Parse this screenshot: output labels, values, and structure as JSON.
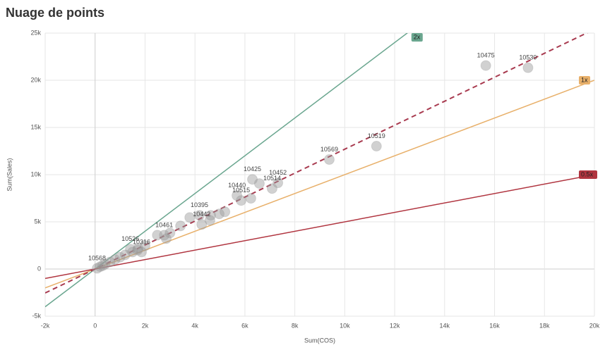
{
  "chart_data": {
    "type": "scatter",
    "title": "Nuage de points",
    "x_label": "Sum(COS)",
    "y_label": "Sum(Sales)",
    "xlim": [
      -2000,
      20000
    ],
    "ylim": [
      -5000,
      25000
    ],
    "xticks": [
      {
        "value": -2000,
        "label": "-2k"
      },
      0,
      {
        "value": 2000,
        "label": "2k"
      },
      {
        "value": 4000,
        "label": "4k"
      },
      {
        "value": 6000,
        "label": "6k"
      },
      {
        "value": 8000,
        "label": "8k"
      },
      {
        "value": 10000,
        "label": "10k"
      },
      {
        "value": 12000,
        "label": "12k"
      },
      {
        "value": 14000,
        "label": "14k"
      },
      {
        "value": 16000,
        "label": "16k"
      },
      {
        "value": 18000,
        "label": "18k"
      },
      {
        "value": 20000,
        "label": "20k"
      }
    ],
    "yticks": [
      {
        "value": -5000,
        "label": "-5k"
      },
      0,
      {
        "value": 5000,
        "label": "5k"
      },
      {
        "value": 10000,
        "label": "10k"
      },
      {
        "value": 15000,
        "label": "15k"
      },
      {
        "value": 20000,
        "label": "20k"
      },
      {
        "value": 25000,
        "label": "25k"
      }
    ],
    "grid": true,
    "color": "#999999",
    "x": [
      15650,
      17340,
      9380,
      11270,
      6300,
      7320,
      5680,
      7090,
      5850,
      4180,
      4270,
      2770,
      1410,
      1860,
      80,
      2490,
      3000,
      3420,
      3790,
      4630,
      4970,
      5200,
      4600,
      6240,
      6580,
      2850,
      2000,
      1720,
      200,
      300,
      400,
      600,
      800,
      1000,
      1200,
      1500,
      1700
    ],
    "values": [
      21560,
      21330,
      11600,
      13020,
      9500,
      9130,
      7780,
      8530,
      7260,
      5690,
      4720,
      3590,
      2100,
      1800,
      70,
      3590,
      3820,
      4570,
      5460,
      5690,
      5840,
      6060,
      5160,
      7490,
      9060,
      3220,
      2470,
      2170,
      250,
      350,
      500,
      750,
      1000,
      1250,
      1500,
      1800,
      2000
    ],
    "labels": [
      "10475",
      "10530",
      "10569",
      "10519",
      "10425",
      "10452",
      "10440",
      "10514",
      "10515",
      "10395",
      "10442",
      "10461",
      "10526",
      "10316",
      "10568",
      null,
      null,
      null,
      null,
      null,
      null,
      null,
      null,
      null,
      null,
      null,
      null,
      null,
      null,
      null,
      null,
      null,
      null,
      null,
      null,
      null,
      null
    ],
    "reference_lines": [
      {
        "label": "2x",
        "slope": 2,
        "color": "#6aa68f"
      },
      {
        "label": "1x",
        "slope": 1,
        "color": "#e8b06a"
      },
      {
        "label": "0.5x",
        "slope": 0.5,
        "color": "#b0343f"
      }
    ],
    "trend_line": {
      "slope": 1.27,
      "intercept": 0,
      "color": "#a83a4f",
      "dashed": true
    }
  }
}
